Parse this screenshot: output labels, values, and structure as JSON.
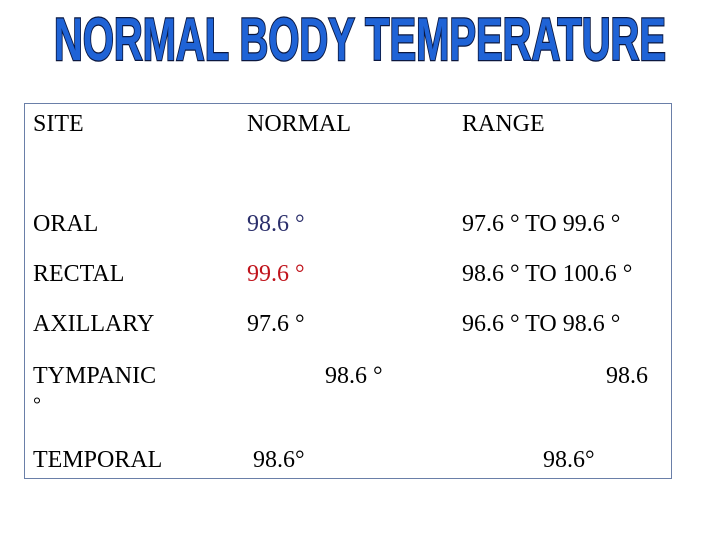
{
  "header": {
    "title": "NORMAL BODY TEMPERATURE"
  },
  "table": {
    "columns": [
      "SITE",
      "NORMAL",
      "RANGE"
    ],
    "rows": [
      [
        "ORAL",
        "98.6 °",
        "97.6 ° TO 99.6 °"
      ],
      [
        "RECTAL",
        "99.6 °",
        "98.6 ° TO 100.6 °"
      ],
      [
        "AXILLARY",
        "97.6 °",
        "96.6 ° TO 98.6 °"
      ],
      [
        "TYMPANIC",
        "98.6 °",
        "98.6",
        "°"
      ],
      [
        "TEMPORAL",
        "98.6°",
        "98.6°"
      ]
    ]
  }
}
